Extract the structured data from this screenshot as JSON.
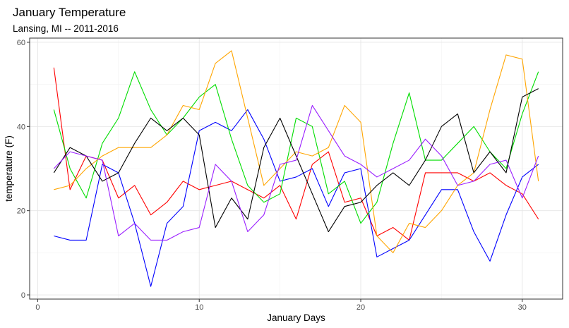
{
  "chart_data": {
    "type": "line",
    "title": "January Temperature",
    "subtitle": "Lansing, MI -- 2011-2016",
    "xlabel": "January Days",
    "ylabel": "temperature (F)",
    "xlim": [
      -0.5,
      32.5
    ],
    "ylim": [
      -1,
      61
    ],
    "xticks": [
      0,
      10,
      20,
      30
    ],
    "yticks": [
      0,
      20,
      40,
      60
    ],
    "grid": true,
    "legend": "none",
    "x": [
      1,
      2,
      3,
      4,
      5,
      6,
      7,
      8,
      9,
      10,
      11,
      12,
      13,
      14,
      15,
      16,
      17,
      18,
      19,
      20,
      21,
      22,
      23,
      24,
      25,
      26,
      27,
      28,
      29,
      30,
      31
    ],
    "series": [
      {
        "color": "#ff0000",
        "values": [
          54,
          25,
          33,
          32,
          23,
          26,
          19,
          22,
          27,
          25,
          26,
          27,
          25,
          23,
          26,
          18,
          31,
          34,
          22,
          23,
          14,
          16,
          13,
          29,
          29,
          29,
          27,
          29,
          26,
          24,
          18
        ]
      },
      {
        "color": "#0000ff",
        "values": [
          14,
          13,
          13,
          31,
          29,
          17,
          2,
          17,
          21,
          39,
          41,
          39,
          44,
          37,
          27,
          28,
          30,
          21,
          29,
          30,
          9,
          11,
          13,
          19,
          25,
          25,
          15,
          8,
          19,
          28,
          31
        ]
      },
      {
        "color": "#00dd00",
        "values": [
          44,
          30,
          23,
          36,
          42,
          53,
          44,
          38,
          42,
          47,
          50,
          37,
          26,
          22,
          24,
          42,
          40,
          24,
          27,
          17,
          22,
          36,
          48,
          32,
          32,
          36,
          40,
          34,
          30,
          43,
          53
        ]
      },
      {
        "color": "#ffa500",
        "values": [
          25,
          26,
          30,
          33,
          35,
          35,
          35,
          38,
          45,
          44,
          55,
          58,
          42,
          26,
          30,
          34,
          33,
          35,
          45,
          41,
          14,
          10,
          17,
          16,
          20,
          26,
          29,
          44,
          57,
          56,
          27
        ]
      },
      {
        "color": "#000000",
        "values": [
          29,
          35,
          33,
          27,
          29,
          36,
          42,
          39,
          42,
          38,
          16,
          23,
          18,
          35,
          42,
          33,
          24,
          15,
          21,
          22,
          26,
          29,
          26,
          32,
          40,
          43,
          29,
          34,
          29,
          47,
          49
        ]
      },
      {
        "color": "#9a1eff",
        "values": [
          30,
          34,
          33,
          32,
          14,
          17,
          13,
          13,
          15,
          16,
          31,
          27,
          15,
          19,
          31,
          32,
          45,
          39,
          33,
          31,
          28,
          30,
          32,
          37,
          33,
          26,
          27,
          31,
          32,
          23,
          33
        ]
      }
    ]
  }
}
